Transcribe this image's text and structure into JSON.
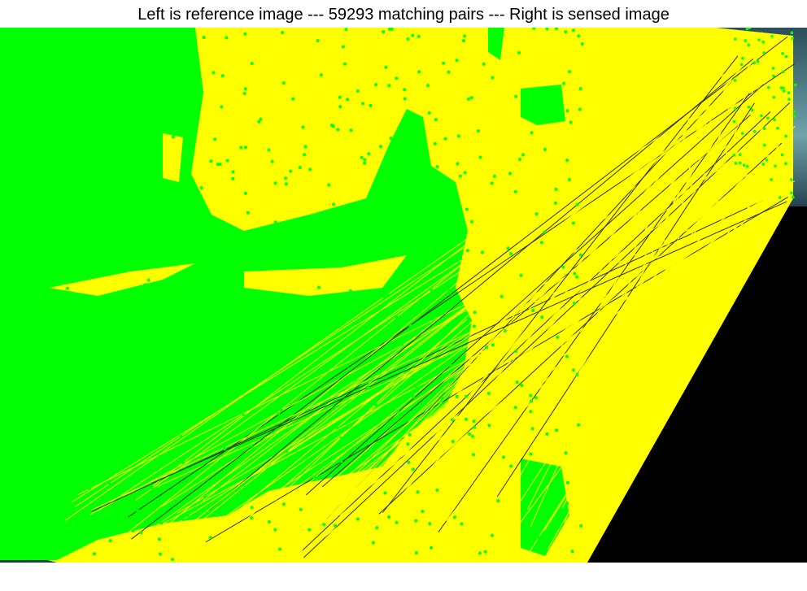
{
  "figure": {
    "title": "Left is reference image --- 59293 matching pairs --- Right is sensed image"
  },
  "colors": {
    "match_lines": "#ffff00",
    "keypoints": "#00ff00",
    "background": "#ffffff",
    "empty_region": "#000000",
    "imagery_dark": "#1c3a4a",
    "imagery_mid": "#4a7a86"
  }
}
